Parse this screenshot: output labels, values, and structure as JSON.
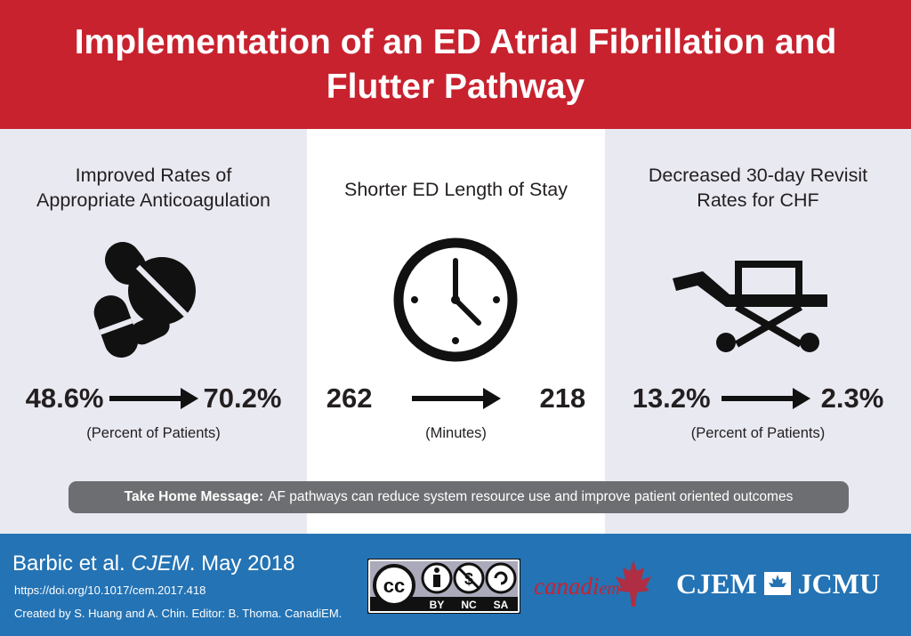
{
  "header": {
    "title": "Implementation of an ED Atrial Fibrillation and Flutter Pathway"
  },
  "panels": [
    {
      "title_line1": "Improved Rates of",
      "title_line2": "Appropriate Anticoagulation",
      "icon": "pills-icon",
      "before": "48.6%",
      "after": "70.2%",
      "unit": "(Percent of Patients)"
    },
    {
      "title_line1": "Shorter ED Length of Stay",
      "icon": "clock-icon",
      "before": "262",
      "after": "218",
      "unit": "(Minutes)"
    },
    {
      "title_line1": "Decreased 30-day Revisit",
      "title_line2": "Rates for CHF",
      "icon": "stretcher-icon",
      "before": "13.2%",
      "after": "2.3%",
      "unit": "(Percent of Patients)"
    }
  ],
  "take_home": {
    "label": "Take Home Message:",
    "text": "AF pathways can reduce system resource use and improve patient oriented outcomes"
  },
  "footer": {
    "authors": "Barbic et al.",
    "journal": "CJEM",
    "date": ". May 2018",
    "doi": "https://doi.org/10.1017/cem.2017.418",
    "credit": "Created by S. Huang and A. Chin. Editor: B. Thoma. CanadiEM.",
    "license_cc": "cc",
    "license_by": "BY",
    "license_nc": "NC",
    "license_sa": "SA",
    "canadiem_logo": "canadi",
    "canadiem_logo_em": "em",
    "cjem_logo": "CJEM",
    "jcmu_logo": "JCMU"
  },
  "colors": {
    "red": "#c8222f",
    "blue": "#2473b4",
    "grey": "#6d6e71",
    "panel": "#e9e9f2"
  }
}
